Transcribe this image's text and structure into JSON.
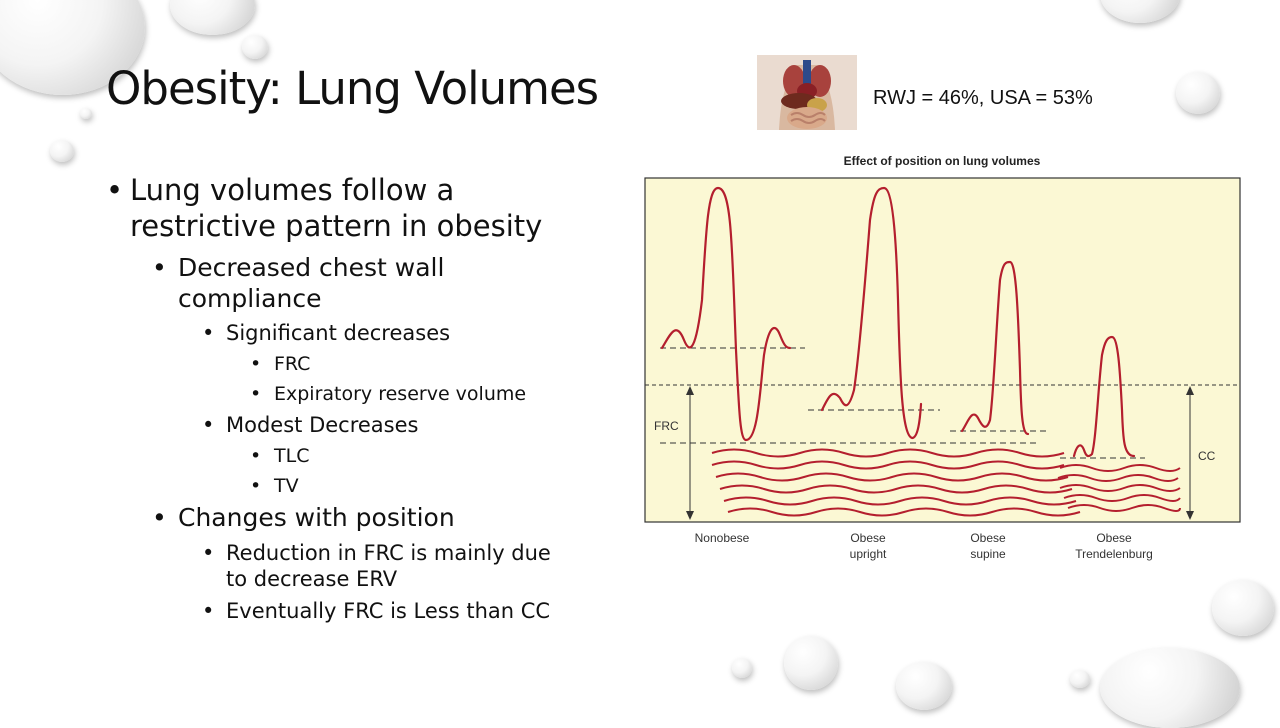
{
  "slide": {
    "title": "Obesity: Lung Volumes",
    "stats": "RWJ = 46%, USA = 53%"
  },
  "bullets": {
    "b1_line1": "Lung volumes follow a",
    "b1_line2": "restrictive pattern in obesity",
    "b2_line1": "Decreased chest wall",
    "b2_line2": "compliance",
    "b3": "Significant decreases",
    "b4": "FRC",
    "b5": "Expiratory reserve volume",
    "b6": "Modest Decreases",
    "b7": "TLC",
    "b8": "TV",
    "b9": "Changes with position",
    "b10_line1": "Reduction in FRC is mainly due",
    "b10_line2": "to decrease ERV",
    "b11": "Eventually FRC is Less than CC"
  },
  "figure": {
    "title": "Effect of position on lung volumes",
    "frc_label": "FRC",
    "cc_label": "CC",
    "panels": [
      {
        "line1": "Nonobese",
        "line2": ""
      },
      {
        "line1": "Obese",
        "line2": "upright"
      },
      {
        "line1": "Obese",
        "line2": "supine"
      },
      {
        "line1": "Obese",
        "line2": "Trendelenburg"
      }
    ]
  },
  "colors": {
    "curve": "#b41f2e",
    "figure_bg": "#fbf8d4"
  },
  "icons": [
    "anatomy-image"
  ]
}
